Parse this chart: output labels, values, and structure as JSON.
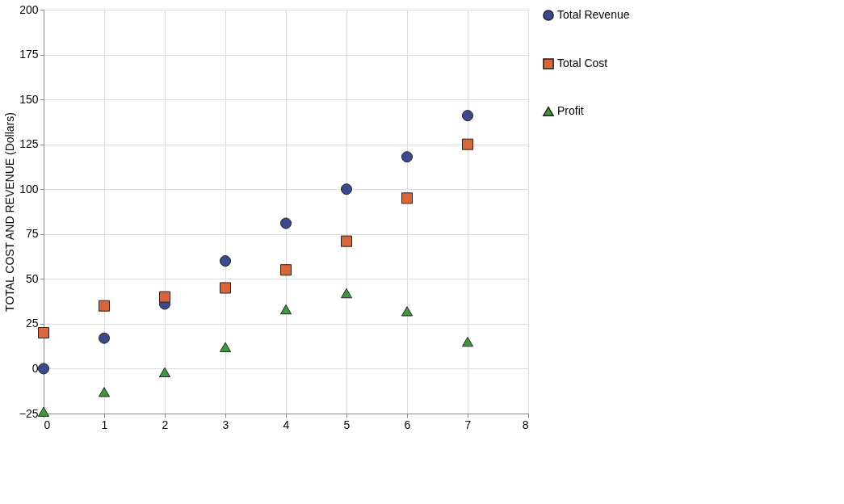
{
  "chart_data": {
    "type": "scatter",
    "ylabel": "TOTAL COST AND REVENUE (Dollars)",
    "x": [
      0,
      1,
      2,
      3,
      4,
      5,
      6,
      7
    ],
    "series": [
      {
        "name": "Total Revenue",
        "color": "#3b4a8c",
        "marker": "circle",
        "values": [
          0,
          17,
          36,
          60,
          81,
          100,
          118,
          141
        ]
      },
      {
        "name": "Total Cost",
        "color": "#d9663a",
        "marker": "square",
        "values": [
          20,
          35,
          40,
          45,
          55,
          71,
          95,
          125
        ]
      },
      {
        "name": "Profit",
        "color": "#3c9a3c",
        "marker": "triangle",
        "values": [
          -24,
          -13,
          -2,
          12,
          33,
          42,
          32,
          15
        ]
      }
    ],
    "xlim": [
      0,
      8
    ],
    "xticks": [
      0,
      1,
      2,
      3,
      4,
      5,
      6,
      7,
      8
    ],
    "ylim": [
      -25,
      200
    ],
    "yticks": [
      -25,
      0,
      25,
      50,
      75,
      100,
      125,
      150,
      175,
      200
    ],
    "grid": true,
    "legend": "right"
  }
}
